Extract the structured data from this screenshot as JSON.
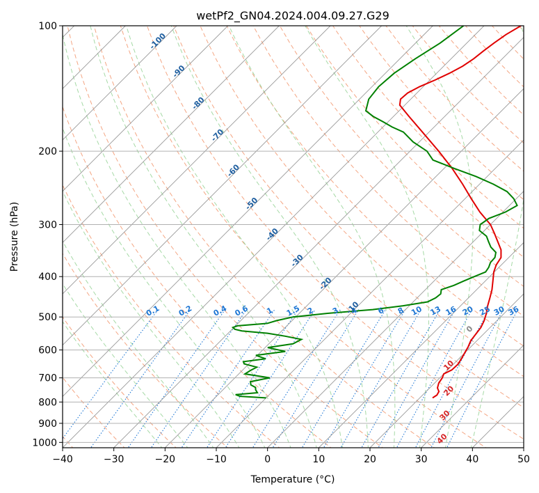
{
  "chart_data": {
    "type": "line",
    "title": "wetPf2_GN04.2024.004.09.27.G29",
    "xlabel": "Temperature (°C)",
    "ylabel": "Pressure (hPa)",
    "xlim": [
      -40,
      50
    ],
    "ylim": [
      1030,
      100
    ],
    "yscale": "log",
    "grid": true,
    "x_ticks": [
      "−40",
      "−30",
      "−20",
      "−10",
      "0",
      "10",
      "20",
      "30",
      "40",
      "50"
    ],
    "y_ticks": [
      "100",
      "200",
      "300",
      "400",
      "500",
      "600",
      "700",
      "800",
      "900",
      "1000"
    ],
    "colors": {
      "temperature": "#e00000",
      "dewpoint": "#008000",
      "isotherm": "#999999",
      "dry_adiabat": "#f4a582",
      "moist_adiabat": "#8fcf8f",
      "mixing_ratio": "#1f77d4",
      "theta_label": "#1f5fa0",
      "red_label": "#d62728",
      "frame": "#000000"
    },
    "series": [
      {
        "key": "temperature",
        "pressure": [
          782,
          770,
          755,
          740,
          720,
          700,
          685,
          670,
          650,
          630,
          610,
          590,
          570,
          550,
          530,
          510,
          490,
          470,
          450,
          430,
          410,
          390,
          375,
          360,
          345,
          330,
          315,
          300,
          280,
          260,
          240,
          220,
          200,
          180,
          165,
          155,
          150,
          145,
          140,
          135,
          130,
          125,
          120,
          115,
          110,
          105,
          100
        ],
        "temp": [
          22.5,
          22.8,
          22.5,
          21.5,
          20.8,
          20.5,
          20.0,
          20.8,
          20.9,
          20.5,
          20.0,
          19.5,
          18.8,
          18.5,
          18.2,
          17.5,
          16.5,
          15.3,
          14.2,
          13.0,
          11.5,
          9.9,
          9.0,
          8.5,
          7.0,
          4.8,
          2.5,
          0.0,
          -4.5,
          -8.8,
          -13.3,
          -18.4,
          -24.4,
          -31.3,
          -37.0,
          -41.0,
          -42.0,
          -41.8,
          -40.7,
          -39.0,
          -37.5,
          -36.3,
          -35.6,
          -35.2,
          -34.7,
          -34.0,
          -32.8
        ]
      },
      {
        "key": "dewpoint",
        "pressure": [
          782,
          775,
          768,
          760,
          748,
          738,
          728,
          715,
          700,
          685,
          672,
          660,
          648,
          640,
          630,
          618,
          605,
          592,
          580,
          566,
          556,
          547,
          540,
          535,
          530,
          525,
          518,
          510,
          500,
          490,
          480,
          470,
          460,
          450,
          440,
          430,
          420,
          410,
          400,
          390,
          380,
          370,
          360,
          350,
          340,
          330,
          320,
          310,
          300,
          290,
          280,
          270,
          260,
          250,
          240,
          230,
          220,
          210,
          200,
          190,
          180,
          175,
          170,
          165,
          160,
          150,
          140,
          130,
          120,
          110,
          100
        ],
        "temp": [
          -10.0,
          -15.4,
          -16.6,
          -12.7,
          -13.6,
          -14.1,
          -15.5,
          -16.2,
          -13.2,
          -18.8,
          -18.4,
          -17.8,
          -20.9,
          -21.5,
          -17.7,
          -20.3,
          -15.3,
          -19.5,
          -15.3,
          -14.5,
          -18.3,
          -22.3,
          -27.8,
          -29.5,
          -30.2,
          -29.6,
          -24.3,
          -23.0,
          -20.5,
          -14.5,
          -6.4,
          -1.2,
          2.8,
          3.6,
          3.8,
          3.1,
          4.7,
          5.8,
          7.0,
          8.3,
          8.0,
          7.4,
          7.3,
          6.5,
          4.5,
          3.0,
          1.5,
          -1.0,
          -2.0,
          -1.5,
          0.5,
          1.5,
          -0.5,
          -3.2,
          -7.3,
          -12.2,
          -18.0,
          -23.8,
          -26.7,
          -31.2,
          -35.0,
          -38.2,
          -41.0,
          -44.0,
          -46.5,
          -48.2,
          -48.7,
          -48.3,
          -47.0,
          -45.2,
          -44.0
        ]
      }
    ],
    "mixing_ratio_labels": [
      "0.1",
      "0.2",
      "0.4",
      "0.6",
      "1",
      "1.5",
      "2",
      "3",
      "4",
      "6",
      "8",
      "10",
      "13",
      "16",
      "20",
      "25",
      "30",
      "36"
    ],
    "mixing_ratio_values": [
      0.1,
      0.2,
      0.4,
      0.6,
      1,
      1.5,
      2,
      3,
      4,
      6,
      8,
      10,
      13,
      16,
      20,
      25,
      30,
      36
    ],
    "theta_labels": [
      "-100",
      "-90",
      "-80",
      "-70",
      "-60",
      "-50",
      "-40",
      "-30",
      "-20",
      "-10"
    ],
    "theta_values": [
      -100,
      -90,
      -80,
      -70,
      -60,
      -50,
      -40,
      -30,
      -20,
      -10
    ],
    "red_labels": [
      "10",
      "20",
      "30",
      "40"
    ],
    "red_values": [
      10,
      20,
      30,
      40
    ],
    "grey_label": "0"
  }
}
